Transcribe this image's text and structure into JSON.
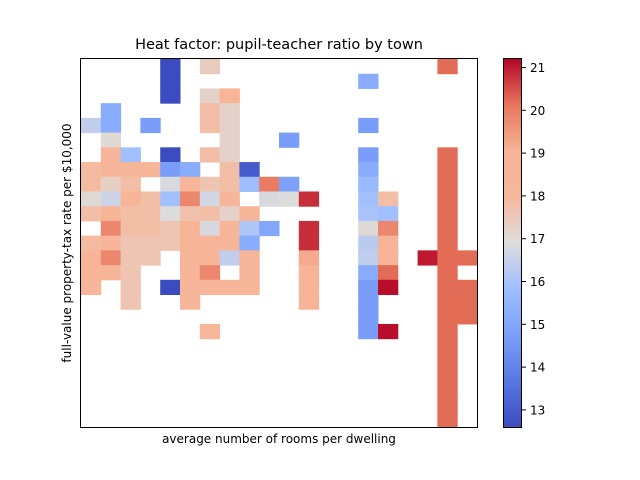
{
  "chart_data": {
    "type": "heatmap",
    "title": "Heat factor: pupil-teacher ratio by town",
    "xlabel": "average number of rooms per dwelling",
    "ylabel": "full-value property-tax rate per $10,000",
    "grid": false,
    "x_ticks_shown": false,
    "y_ticks_shown": false,
    "n_cols": 20,
    "n_rows": 25,
    "colormap": "coolwarm",
    "colorbar": {
      "vmin": 12.6,
      "vmax": 21.2,
      "ticks": [
        13,
        14,
        15,
        16,
        17,
        18,
        19,
        20,
        21
      ],
      "position": "right"
    },
    "cells": [
      [
        4,
        0,
        12.6
      ],
      [
        6,
        0,
        17.4
      ],
      [
        18,
        0,
        20.2
      ],
      [
        4,
        1,
        12.6
      ],
      [
        14,
        1,
        15.2
      ],
      [
        4,
        2,
        12.6
      ],
      [
        6,
        2,
        17.2
      ],
      [
        7,
        2,
        18.8
      ],
      [
        1,
        3,
        15.2
      ],
      [
        6,
        3,
        17.8
      ],
      [
        7,
        3,
        17.2
      ],
      [
        0,
        4,
        16.4
      ],
      [
        1,
        4,
        15.2
      ],
      [
        3,
        4,
        14.7
      ],
      [
        6,
        4,
        17.8
      ],
      [
        7,
        4,
        17.2
      ],
      [
        14,
        4,
        14.7
      ],
      [
        1,
        5,
        17.0
      ],
      [
        7,
        5,
        17.2
      ],
      [
        10,
        5,
        14.7
      ],
      [
        1,
        6,
        18.4
      ],
      [
        2,
        6,
        15.9
      ],
      [
        4,
        6,
        12.6
      ],
      [
        6,
        6,
        17.8
      ],
      [
        7,
        6,
        17.2
      ],
      [
        14,
        6,
        14.7
      ],
      [
        18,
        6,
        20.2
      ],
      [
        0,
        7,
        17.9
      ],
      [
        1,
        7,
        18.4
      ],
      [
        2,
        7,
        18.6
      ],
      [
        3,
        7,
        18.6
      ],
      [
        4,
        7,
        14.7
      ],
      [
        5,
        7,
        15.2
      ],
      [
        7,
        7,
        17.8
      ],
      [
        8,
        7,
        13.0
      ],
      [
        14,
        7,
        15.2
      ],
      [
        18,
        7,
        20.2
      ],
      [
        0,
        8,
        17.9
      ],
      [
        1,
        8,
        17.3
      ],
      [
        2,
        8,
        17.8
      ],
      [
        4,
        8,
        16.8
      ],
      [
        5,
        8,
        18.3
      ],
      [
        6,
        8,
        17.6
      ],
      [
        7,
        8,
        17.8
      ],
      [
        8,
        8,
        15.8
      ],
      [
        9,
        8,
        20.0
      ],
      [
        10,
        8,
        14.8
      ],
      [
        14,
        8,
        15.7
      ],
      [
        18,
        8,
        20.2
      ],
      [
        0,
        9,
        17.0
      ],
      [
        1,
        9,
        16.6
      ],
      [
        2,
        9,
        18.7
      ],
      [
        3,
        9,
        17.8
      ],
      [
        4,
        9,
        15.9
      ],
      [
        5,
        9,
        19.8
      ],
      [
        6,
        9,
        16.7
      ],
      [
        7,
        9,
        18.5
      ],
      [
        9,
        9,
        16.8
      ],
      [
        10,
        9,
        16.9
      ],
      [
        11,
        9,
        20.8
      ],
      [
        14,
        9,
        15.9
      ],
      [
        15,
        9,
        17.8
      ],
      [
        18,
        9,
        20.2
      ],
      [
        0,
        10,
        17.8
      ],
      [
        1,
        10,
        18.7
      ],
      [
        2,
        10,
        17.8
      ],
      [
        3,
        10,
        17.8
      ],
      [
        4,
        10,
        16.9
      ],
      [
        5,
        10,
        17.7
      ],
      [
        6,
        10,
        17.8
      ],
      [
        7,
        10,
        17.2
      ],
      [
        8,
        10,
        18.7
      ],
      [
        14,
        10,
        16.0
      ],
      [
        15,
        10,
        15.9
      ],
      [
        18,
        10,
        20.2
      ],
      [
        1,
        11,
        19.8
      ],
      [
        2,
        11,
        17.8
      ],
      [
        3,
        11,
        17.8
      ],
      [
        4,
        11,
        17.6
      ],
      [
        5,
        11,
        18.9
      ],
      [
        6,
        11,
        16.8
      ],
      [
        7,
        11,
        18.4
      ],
      [
        8,
        11,
        16.1
      ],
      [
        9,
        11,
        15.0
      ],
      [
        11,
        11,
        20.8
      ],
      [
        14,
        11,
        17.0
      ],
      [
        15,
        11,
        19.8
      ],
      [
        18,
        11,
        20.2
      ],
      [
        0,
        12,
        17.9
      ],
      [
        1,
        12,
        18.6
      ],
      [
        2,
        12,
        17.6
      ],
      [
        3,
        12,
        17.6
      ],
      [
        4,
        12,
        17.6
      ],
      [
        5,
        12,
        18.7
      ],
      [
        6,
        12,
        18.4
      ],
      [
        7,
        12,
        18.4
      ],
      [
        8,
        12,
        15.2
      ],
      [
        11,
        12,
        20.8
      ],
      [
        14,
        12,
        16.3
      ],
      [
        15,
        12,
        18.7
      ],
      [
        18,
        12,
        20.2
      ],
      [
        0,
        13,
        18.9
      ],
      [
        1,
        13,
        19.8
      ],
      [
        2,
        13,
        17.6
      ],
      [
        3,
        13,
        17.6
      ],
      [
        5,
        13,
        18.6
      ],
      [
        6,
        13,
        18.6
      ],
      [
        7,
        13,
        16.4
      ],
      [
        8,
        13,
        18.6
      ],
      [
        11,
        13,
        19.2
      ],
      [
        14,
        13,
        16.4
      ],
      [
        15,
        13,
        18.9
      ],
      [
        17,
        13,
        21.0
      ],
      [
        18,
        13,
        20.2
      ],
      [
        19,
        13,
        20.2
      ],
      [
        0,
        14,
        18.9
      ],
      [
        1,
        14,
        18.7
      ],
      [
        2,
        14,
        17.6
      ],
      [
        5,
        14,
        18.6
      ],
      [
        6,
        14,
        19.8
      ],
      [
        8,
        14,
        18.6
      ],
      [
        11,
        14,
        18.9
      ],
      [
        14,
        14,
        15.2
      ],
      [
        15,
        14,
        20.2
      ],
      [
        18,
        14,
        20.2
      ],
      [
        0,
        15,
        18.4
      ],
      [
        2,
        15,
        17.6
      ],
      [
        4,
        15,
        12.6
      ],
      [
        5,
        15,
        18.6
      ],
      [
        6,
        15,
        18.6
      ],
      [
        7,
        15,
        18.6
      ],
      [
        8,
        15,
        18.6
      ],
      [
        11,
        15,
        18.9
      ],
      [
        14,
        15,
        14.7
      ],
      [
        15,
        15,
        21.1
      ],
      [
        18,
        15,
        20.2
      ],
      [
        19,
        15,
        20.2
      ],
      [
        2,
        16,
        17.6
      ],
      [
        5,
        16,
        18.6
      ],
      [
        11,
        16,
        18.9
      ],
      [
        14,
        16,
        14.7
      ],
      [
        18,
        16,
        20.2
      ],
      [
        19,
        16,
        20.2
      ],
      [
        14,
        17,
        14.7
      ],
      [
        18,
        17,
        20.2
      ],
      [
        19,
        17,
        20.2
      ],
      [
        6,
        18,
        18.2
      ],
      [
        14,
        18,
        14.7
      ],
      [
        15,
        18,
        21.1
      ],
      [
        18,
        18,
        20.2
      ],
      [
        18,
        19,
        20.2
      ],
      [
        18,
        20,
        20.2
      ],
      [
        18,
        21,
        20.2
      ],
      [
        18,
        22,
        20.2
      ],
      [
        18,
        23,
        20.2
      ],
      [
        18,
        24,
        20.2
      ]
    ]
  }
}
